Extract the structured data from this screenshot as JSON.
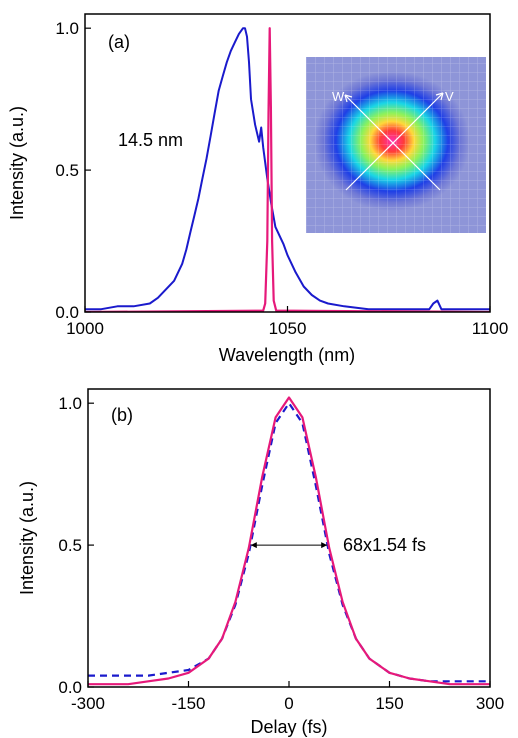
{
  "chart_data": [
    {
      "type": "line",
      "panel_label": "(a)",
      "xlabel": "Wavelength (nm)",
      "ylabel": "Intensity (a.u.)",
      "xlim": [
        1000,
        1100
      ],
      "ylim": [
        0,
        1.05
      ],
      "xticks": [
        "1000",
        "1050",
        "1100"
      ],
      "yticks": [
        "0.0",
        "0.5",
        "1.0"
      ],
      "annotation": "14.5 nm",
      "inset": {
        "kind": "beam-profile-image",
        "labels": [
          "W",
          "V"
        ]
      },
      "colors": {
        "broad": "#1a1acc",
        "narrow": "#e6197a"
      },
      "series": [
        {
          "x": [
            1000,
            1004,
            1008,
            1012,
            1016,
            1018,
            1020,
            1022,
            1024,
            1025,
            1026,
            1027,
            1028,
            1029,
            1030,
            1031,
            1032,
            1033,
            1034,
            1035,
            1036,
            1037,
            1038,
            1039,
            1039.5,
            1040,
            1040.5,
            1041,
            1042,
            1043,
            1043.5,
            1044,
            1045,
            1046,
            1047,
            1048,
            1049,
            1050,
            1052,
            1054,
            1056,
            1058,
            1060,
            1064,
            1070,
            1080,
            1085,
            1086,
            1087,
            1088,
            1090,
            1100
          ],
          "y": [
            0.01,
            0.01,
            0.02,
            0.02,
            0.03,
            0.05,
            0.08,
            0.11,
            0.17,
            0.22,
            0.28,
            0.34,
            0.4,
            0.47,
            0.54,
            0.62,
            0.7,
            0.78,
            0.83,
            0.88,
            0.92,
            0.95,
            0.98,
            1.0,
            1.0,
            0.97,
            0.88,
            0.75,
            0.66,
            0.6,
            0.65,
            0.58,
            0.47,
            0.38,
            0.3,
            0.27,
            0.24,
            0.2,
            0.14,
            0.09,
            0.06,
            0.04,
            0.03,
            0.02,
            0.01,
            0.01,
            0.01,
            0.03,
            0.04,
            0.01,
            0.01,
            0.01
          ]
        },
        {
          "x": [
            1000,
            1044.0,
            1044.5,
            1045.0,
            1045.3,
            1045.6,
            1045.9,
            1046.2,
            1046.6,
            1047.2,
            1100
          ],
          "y": [
            0.0,
            0.005,
            0.03,
            0.25,
            0.7,
            1.0,
            0.72,
            0.25,
            0.04,
            0.005,
            0.0
          ]
        }
      ]
    },
    {
      "type": "line",
      "panel_label": "(b)",
      "xlabel": "Delay (fs)",
      "ylabel": "Intensity (a.u.)",
      "xlim": [
        -300,
        300
      ],
      "ylim": [
        0,
        1.05
      ],
      "xticks": [
        "-300",
        "-150",
        "0",
        "150",
        "300"
      ],
      "yticks": [
        "0.0",
        "0.5",
        "1.0"
      ],
      "annotation": "68x1.54 fs",
      "fwhm_marker": [
        -57,
        57
      ],
      "colors": {
        "measured": "#1a1acc",
        "fit": "#e6197a"
      },
      "series": [
        {
          "style": "dashed",
          "x": [
            -300,
            -270,
            -240,
            -210,
            -180,
            -150,
            -120,
            -100,
            -80,
            -60,
            -40,
            -20,
            0,
            20,
            40,
            60,
            80,
            100,
            120,
            150,
            180,
            210,
            240,
            270,
            300
          ],
          "y": [
            0.04,
            0.04,
            0.04,
            0.04,
            0.05,
            0.06,
            0.1,
            0.17,
            0.29,
            0.47,
            0.71,
            0.93,
            1.0,
            0.93,
            0.71,
            0.47,
            0.29,
            0.17,
            0.1,
            0.05,
            0.03,
            0.02,
            0.02,
            0.02,
            0.02
          ]
        },
        {
          "style": "solid",
          "x": [
            -300,
            -270,
            -240,
            -210,
            -180,
            -150,
            -120,
            -100,
            -80,
            -60,
            -40,
            -20,
            0,
            20,
            40,
            60,
            80,
            100,
            120,
            150,
            180,
            210,
            240,
            270,
            300
          ],
          "y": [
            0.01,
            0.01,
            0.01,
            0.02,
            0.03,
            0.05,
            0.1,
            0.17,
            0.3,
            0.49,
            0.74,
            0.95,
            1.02,
            0.95,
            0.74,
            0.49,
            0.3,
            0.17,
            0.1,
            0.05,
            0.03,
            0.02,
            0.01,
            0.01,
            0.01
          ]
        }
      ]
    }
  ]
}
